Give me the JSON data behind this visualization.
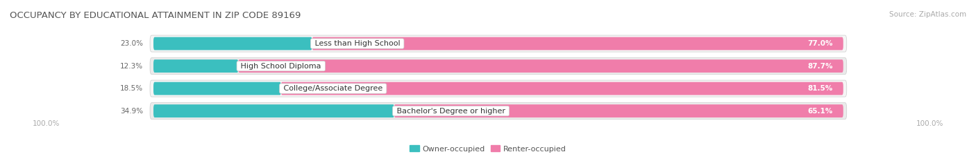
{
  "title": "OCCUPANCY BY EDUCATIONAL ATTAINMENT IN ZIP CODE 89169",
  "source": "Source: ZipAtlas.com",
  "categories": [
    "Less than High School",
    "High School Diploma",
    "College/Associate Degree",
    "Bachelor's Degree or higher"
  ],
  "owner_pct": [
    23.0,
    12.3,
    18.5,
    34.9
  ],
  "renter_pct": [
    77.0,
    87.7,
    81.5,
    65.1
  ],
  "owner_color": "#3bbfbf",
  "renter_color": "#f07daa",
  "bar_bg_color": "#e8e8e8",
  "row_bg_even": "#f5f5f5",
  "row_bg_odd": "#ebebeb",
  "title_fontsize": 9.5,
  "source_fontsize": 7.5,
  "label_fontsize": 8,
  "pct_fontsize": 7.5,
  "tick_fontsize": 7.5,
  "legend_fontsize": 8,
  "left_axis_label": "100.0%",
  "right_axis_label": "100.0%",
  "bar_height": 0.58,
  "total_width": 100.0,
  "figsize": [
    14.06,
    2.33
  ],
  "dpi": 100
}
